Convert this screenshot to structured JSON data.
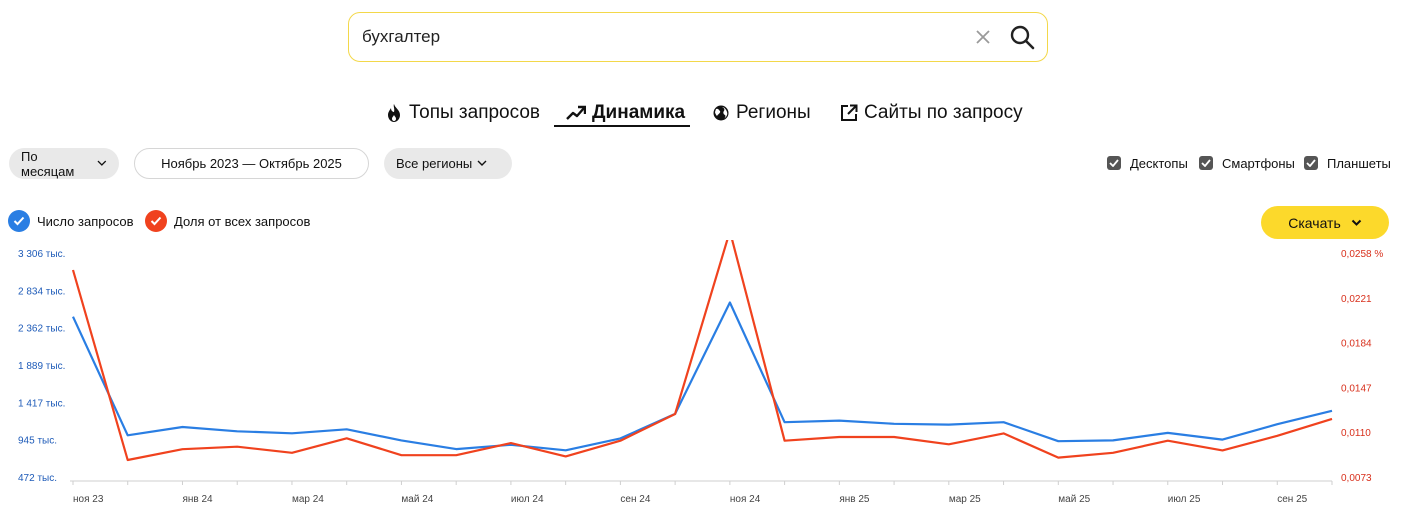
{
  "search": {
    "query": "бухгалтер"
  },
  "tabs": [
    {
      "label": "Топы запросов",
      "icon": "fire-icon"
    },
    {
      "label": "Динамика",
      "icon": "trend-up-icon"
    },
    {
      "label": "Регионы",
      "icon": "globe-icon"
    },
    {
      "label": "Сайты по запросу",
      "icon": "external-link-icon"
    }
  ],
  "filters": {
    "period_group": "По месяцам",
    "date_range": "Ноябрь 2023 — Октябрь 2025",
    "region": "Все регионы"
  },
  "devices": [
    {
      "label": "Десктопы",
      "checked": true
    },
    {
      "label": "Смартфоны",
      "checked": true
    },
    {
      "label": "Планшеты",
      "checked": true
    }
  ],
  "legend": [
    {
      "label": "Число запросов",
      "color": "#2a7ee3"
    },
    {
      "label": "Доля от всех запросов",
      "color": "#f0421e"
    }
  ],
  "download_label": "Скачать",
  "chart_data": {
    "type": "line",
    "x": [
      "ноя 23",
      "дек 23",
      "янв 24",
      "фев 24",
      "мар 24",
      "апр 24",
      "май 24",
      "июн 24",
      "июл 24",
      "авг 24",
      "сен 24",
      "окт 24",
      "ноя 24",
      "дек 24",
      "янв 25",
      "фев 25",
      "мар 25",
      "апр 25",
      "май 25",
      "июн 25",
      "июл 25",
      "авг 25",
      "сен 25",
      "окт 25"
    ],
    "x_tick_labels": [
      "ноя 23",
      "янв 24",
      "мар 24",
      "май 24",
      "июл 24",
      "сен 24",
      "ноя 24",
      "янв 25",
      "мар 25",
      "май 25",
      "июл 25",
      "сен 25"
    ],
    "left_axis": {
      "ticks": [
        472,
        945,
        1417,
        1889,
        2362,
        2834,
        3306
      ],
      "tick_labels": [
        "472 тыс.",
        "945 тыс.",
        "1 417 тыс.",
        "1 889 тыс.",
        "2 362 тыс.",
        "2 834 тыс.",
        "3 306 тыс."
      ],
      "range": [
        472,
        3306
      ]
    },
    "right_axis": {
      "ticks": [
        0.0073,
        0.011,
        0.0147,
        0.0184,
        0.0221,
        0.0258
      ],
      "tick_labels": [
        "0,0073",
        "0,0110",
        "0,0147",
        "0,0184",
        "0,0221",
        "0,0258 %"
      ],
      "range": [
        0.0073,
        0.0258
      ]
    },
    "series": [
      {
        "name": "Число запросов",
        "color": "#2a7ee3",
        "axis": "left",
        "values": [
          2500,
          1000,
          1105,
          1050,
          1025,
          1075,
          935,
          825,
          880,
          810,
          960,
          1270,
          2680,
          1165,
          1185,
          1145,
          1135,
          1165,
          925,
          935,
          1030,
          945,
          1140,
          1310
        ]
      },
      {
        "name": "Доля от всех запросов",
        "color": "#f0421e",
        "axis": "right",
        "values": [
          0.0244,
          0.0087,
          0.0096,
          0.0098,
          0.0093,
          0.0105,
          0.0091,
          0.0091,
          0.0101,
          0.009,
          0.0103,
          0.0125,
          0.0276,
          0.0103,
          0.0106,
          0.0106,
          0.01,
          0.0109,
          0.0089,
          0.0093,
          0.0103,
          0.0095,
          0.0107,
          0.0121
        ]
      }
    ]
  }
}
